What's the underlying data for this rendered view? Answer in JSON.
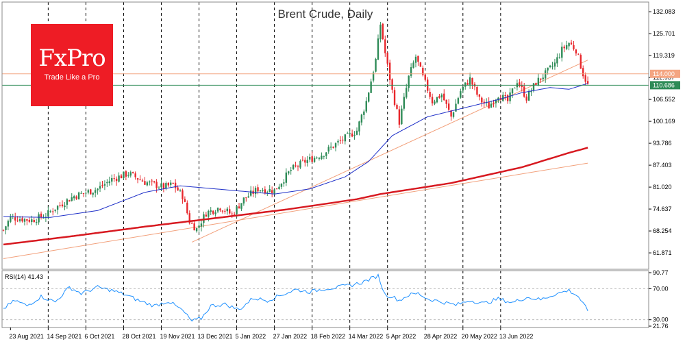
{
  "logo": {
    "brand": "FxPro",
    "tagline": "Trade Like a Pro"
  },
  "chart_data": [
    {
      "type": "candlestick",
      "title": "Brent Crude, Daily",
      "ylim": [
        57.5,
        134.5
      ],
      "y_ticks": [
        "132.083",
        "125.701",
        "119.319",
        "112.937",
        "106.552",
        "100.169",
        "93.786",
        "87.403",
        "81.020",
        "74.637",
        "68.254",
        "61.871"
      ],
      "x_labels": [
        "23 Aug 2021",
        "14 Sep 2021",
        "6 Oct 2021",
        "28 Oct 2021",
        "19 Nov 2021",
        "13 Dec 2021",
        "5 Jan 2022",
        "27 Jan 2022",
        "18 Feb 2022",
        "14 Mar 2022",
        "5 Apr 2022",
        "28 Apr 2022",
        "20 May 2022",
        "13 Jun 2022"
      ],
      "price_tags": [
        {
          "label": "114.000",
          "value": 114.0,
          "color": "#f4a582"
        },
        {
          "label": "110.686",
          "value": 110.686,
          "color": "#2e8b57"
        }
      ],
      "colors": {
        "bull": "#2e8b57",
        "bear": "#e8272c",
        "ma_short": "#1e2fc8",
        "ma_long": "#d71920",
        "trend": "#f2a07b"
      },
      "anchors": [
        {
          "i": 0,
          "v": 68.5
        },
        {
          "i": 3,
          "v": 72.2
        },
        {
          "i": 12,
          "v": 71.4
        },
        {
          "i": 18,
          "v": 72.8
        },
        {
          "i": 22,
          "v": 75.0
        },
        {
          "i": 30,
          "v": 78.4
        },
        {
          "i": 40,
          "v": 80.5
        },
        {
          "i": 46,
          "v": 83.3
        },
        {
          "i": 53,
          "v": 85.0
        },
        {
          "i": 60,
          "v": 82.5
        },
        {
          "i": 68,
          "v": 81.0
        },
        {
          "i": 72,
          "v": 81.8
        },
        {
          "i": 76,
          "v": 78.5
        },
        {
          "i": 79,
          "v": 71.0
        },
        {
          "i": 82,
          "v": 68.8
        },
        {
          "i": 86,
          "v": 73.5
        },
        {
          "i": 92,
          "v": 75.2
        },
        {
          "i": 97,
          "v": 73.0
        },
        {
          "i": 102,
          "v": 77.5
        },
        {
          "i": 108,
          "v": 80.5
        },
        {
          "i": 115,
          "v": 80.0
        },
        {
          "i": 122,
          "v": 86.0
        },
        {
          "i": 128,
          "v": 88.5
        },
        {
          "i": 135,
          "v": 90.5
        },
        {
          "i": 142,
          "v": 94.0
        },
        {
          "i": 150,
          "v": 97.5
        },
        {
          "i": 154,
          "v": 106.0
        },
        {
          "i": 158,
          "v": 118.0
        },
        {
          "i": 160,
          "v": 128.5
        },
        {
          "i": 162,
          "v": 120.0
        },
        {
          "i": 165,
          "v": 109.0
        },
        {
          "i": 168,
          "v": 100.0
        },
        {
          "i": 172,
          "v": 113.0
        },
        {
          "i": 175,
          "v": 119.0
        },
        {
          "i": 178,
          "v": 113.0
        },
        {
          "i": 182,
          "v": 106.0
        },
        {
          "i": 186,
          "v": 108.0
        },
        {
          "i": 190,
          "v": 101.5
        },
        {
          "i": 194,
          "v": 109.0
        },
        {
          "i": 198,
          "v": 112.5
        },
        {
          "i": 202,
          "v": 106.5
        },
        {
          "i": 206,
          "v": 104.5
        },
        {
          "i": 210,
          "v": 108.0
        },
        {
          "i": 214,
          "v": 106.0
        },
        {
          "i": 218,
          "v": 112.0
        },
        {
          "i": 222,
          "v": 107.0
        },
        {
          "i": 226,
          "v": 111.5
        },
        {
          "i": 230,
          "v": 114.0
        },
        {
          "i": 234,
          "v": 117.0
        },
        {
          "i": 237,
          "v": 121.0
        },
        {
          "i": 240,
          "v": 123.0
        },
        {
          "i": 243,
          "v": 121.0
        },
        {
          "i": 246,
          "v": 114.0
        },
        {
          "i": 248,
          "v": 110.7
        }
      ],
      "ma_short": [
        [
          0,
          72.4
        ],
        [
          20,
          72.2
        ],
        [
          40,
          74.2
        ],
        [
          60,
          79.5
        ],
        [
          75,
          81.4
        ],
        [
          95,
          80.2
        ],
        [
          115,
          79.0
        ],
        [
          130,
          80.5
        ],
        [
          145,
          84.0
        ],
        [
          155,
          88.5
        ],
        [
          165,
          96.0
        ],
        [
          180,
          101.5
        ],
        [
          195,
          104.0
        ],
        [
          210,
          106.5
        ],
        [
          220,
          108.5
        ],
        [
          232,
          110.0
        ],
        [
          240,
          109.5
        ],
        [
          248,
          111.2
        ]
      ],
      "ma_long": [
        [
          0,
          64.3
        ],
        [
          30,
          66.8
        ],
        [
          60,
          69.5
        ],
        [
          90,
          72.0
        ],
        [
          120,
          74.5
        ],
        [
          150,
          77.5
        ],
        [
          160,
          79.0
        ],
        [
          190,
          82.2
        ],
        [
          220,
          86.8
        ],
        [
          240,
          91.0
        ],
        [
          248,
          92.5
        ]
      ],
      "trendlines": [
        {
          "from": [
            0,
            60.2
          ],
          "to": [
            248,
            88.0
          ]
        },
        {
          "from": [
            80,
            65.0
          ],
          "to": [
            248,
            118.0
          ]
        }
      ]
    },
    {
      "type": "line",
      "title": "RSI(14) 41.43",
      "ylim": [
        21.76,
        90.77
      ],
      "y_ticks": [
        "90.77",
        "70.00",
        "30.00",
        "21.76"
      ],
      "levels": [
        70,
        30
      ],
      "anchors": [
        {
          "i": 0,
          "v": 44
        },
        {
          "i": 5,
          "v": 55
        },
        {
          "i": 10,
          "v": 48
        },
        {
          "i": 16,
          "v": 60
        },
        {
          "i": 22,
          "v": 53
        },
        {
          "i": 28,
          "v": 72
        },
        {
          "i": 33,
          "v": 64
        },
        {
          "i": 40,
          "v": 72
        },
        {
          "i": 46,
          "v": 68
        },
        {
          "i": 52,
          "v": 62
        },
        {
          "i": 58,
          "v": 54
        },
        {
          "i": 64,
          "v": 48
        },
        {
          "i": 70,
          "v": 54
        },
        {
          "i": 76,
          "v": 42
        },
        {
          "i": 80,
          "v": 28
        },
        {
          "i": 84,
          "v": 32
        },
        {
          "i": 88,
          "v": 48
        },
        {
          "i": 94,
          "v": 50
        },
        {
          "i": 100,
          "v": 43
        },
        {
          "i": 106,
          "v": 58
        },
        {
          "i": 112,
          "v": 55
        },
        {
          "i": 118,
          "v": 62
        },
        {
          "i": 124,
          "v": 69
        },
        {
          "i": 130,
          "v": 66
        },
        {
          "i": 136,
          "v": 70
        },
        {
          "i": 142,
          "v": 72
        },
        {
          "i": 148,
          "v": 75
        },
        {
          "i": 152,
          "v": 78
        },
        {
          "i": 156,
          "v": 83
        },
        {
          "i": 159,
          "v": 87
        },
        {
          "i": 162,
          "v": 62
        },
        {
          "i": 165,
          "v": 60
        },
        {
          "i": 168,
          "v": 55
        },
        {
          "i": 172,
          "v": 62
        },
        {
          "i": 176,
          "v": 64
        },
        {
          "i": 180,
          "v": 57
        },
        {
          "i": 186,
          "v": 53
        },
        {
          "i": 192,
          "v": 49
        },
        {
          "i": 198,
          "v": 55
        },
        {
          "i": 204,
          "v": 51
        },
        {
          "i": 210,
          "v": 57
        },
        {
          "i": 216,
          "v": 52
        },
        {
          "i": 222,
          "v": 59
        },
        {
          "i": 228,
          "v": 56
        },
        {
          "i": 234,
          "v": 63
        },
        {
          "i": 240,
          "v": 68
        },
        {
          "i": 244,
          "v": 60
        },
        {
          "i": 248,
          "v": 41.43
        }
      ]
    }
  ]
}
